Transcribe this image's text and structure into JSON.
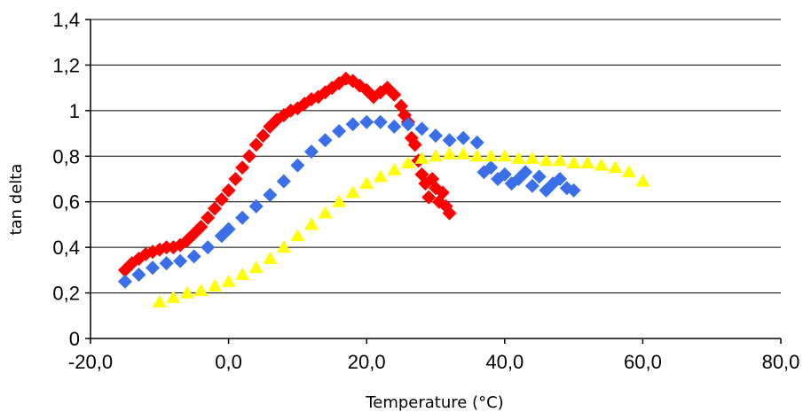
{
  "chart_data": {
    "type": "scatter",
    "title": "",
    "xlabel": "Temperature (°C)",
    "ylabel": "tan delta",
    "xlim": [
      -20,
      80
    ],
    "ylim": [
      0,
      1.4
    ],
    "x_ticks": [
      -20,
      0,
      20,
      40,
      60,
      80
    ],
    "x_tick_labels": [
      "-20,0",
      "0,0",
      "20,0",
      "40,0",
      "60,0",
      "80,0"
    ],
    "y_ticks": [
      0,
      0.2,
      0.4,
      0.6,
      0.8,
      1,
      1.2,
      1.4
    ],
    "y_tick_labels": [
      "0",
      "0,2",
      "0,4",
      "0,6",
      "0,8",
      "1",
      "1,2",
      "1,4"
    ],
    "grid": "horizontal",
    "legend": "none",
    "series": [
      {
        "color": "#ff0000",
        "marker": "diamond",
        "x": [
          -15,
          -14,
          -13,
          -12,
          -11,
          -10,
          -9,
          -8,
          -7,
          -6,
          -5,
          -4,
          -3,
          -2,
          -1,
          0,
          1,
          2,
          3,
          4,
          5,
          6,
          7,
          8,
          9,
          10,
          11,
          12,
          13,
          14,
          15,
          16,
          17,
          18,
          19,
          20,
          21,
          22,
          23,
          24,
          25,
          25.5,
          26,
          26.5,
          27,
          27.5,
          28,
          28.5,
          29,
          29.5,
          30,
          30.5,
          31,
          31.5,
          32
        ],
        "y": [
          0.3,
          0.33,
          0.35,
          0.37,
          0.38,
          0.39,
          0.4,
          0.4,
          0.41,
          0.43,
          0.46,
          0.49,
          0.53,
          0.57,
          0.61,
          0.65,
          0.7,
          0.75,
          0.8,
          0.85,
          0.89,
          0.93,
          0.96,
          0.98,
          1.0,
          1.01,
          1.03,
          1.05,
          1.06,
          1.08,
          1.1,
          1.12,
          1.14,
          1.13,
          1.11,
          1.09,
          1.06,
          1.08,
          1.1,
          1.07,
          1.02,
          0.98,
          0.95,
          0.88,
          0.85,
          0.78,
          0.72,
          0.68,
          0.62,
          0.7,
          0.66,
          0.6,
          0.64,
          0.58,
          0.55
        ]
      },
      {
        "color": "#3a6fe8",
        "marker": "diamond",
        "x": [
          -15,
          -13,
          -11,
          -9,
          -7,
          -5,
          -3,
          -1,
          0,
          2,
          4,
          6,
          8,
          10,
          12,
          14,
          16,
          18,
          20,
          22,
          24,
          26,
          28,
          30,
          32,
          34,
          36,
          37,
          38,
          39,
          40,
          41,
          42,
          43,
          44,
          45,
          46,
          47,
          48,
          49,
          50
        ],
        "y": [
          0.25,
          0.28,
          0.31,
          0.33,
          0.34,
          0.36,
          0.4,
          0.45,
          0.48,
          0.53,
          0.58,
          0.63,
          0.69,
          0.76,
          0.82,
          0.87,
          0.91,
          0.94,
          0.95,
          0.95,
          0.93,
          0.94,
          0.92,
          0.89,
          0.87,
          0.88,
          0.86,
          0.73,
          0.75,
          0.7,
          0.72,
          0.68,
          0.7,
          0.73,
          0.67,
          0.71,
          0.65,
          0.68,
          0.7,
          0.66,
          0.65
        ]
      },
      {
        "color": "#ffff00",
        "marker": "triangle",
        "x": [
          -10,
          -8,
          -6,
          -4,
          -2,
          0,
          2,
          4,
          6,
          8,
          10,
          12,
          14,
          16,
          18,
          20,
          22,
          24,
          26,
          28,
          30,
          32,
          34,
          36,
          38,
          40,
          42,
          44,
          46,
          48,
          50,
          52,
          54,
          56,
          58,
          60
        ],
        "y": [
          0.16,
          0.18,
          0.2,
          0.21,
          0.23,
          0.25,
          0.28,
          0.31,
          0.35,
          0.4,
          0.45,
          0.5,
          0.55,
          0.6,
          0.64,
          0.68,
          0.71,
          0.74,
          0.77,
          0.79,
          0.8,
          0.81,
          0.81,
          0.8,
          0.8,
          0.8,
          0.79,
          0.79,
          0.78,
          0.78,
          0.77,
          0.77,
          0.76,
          0.75,
          0.73,
          0.69
        ]
      }
    ]
  }
}
